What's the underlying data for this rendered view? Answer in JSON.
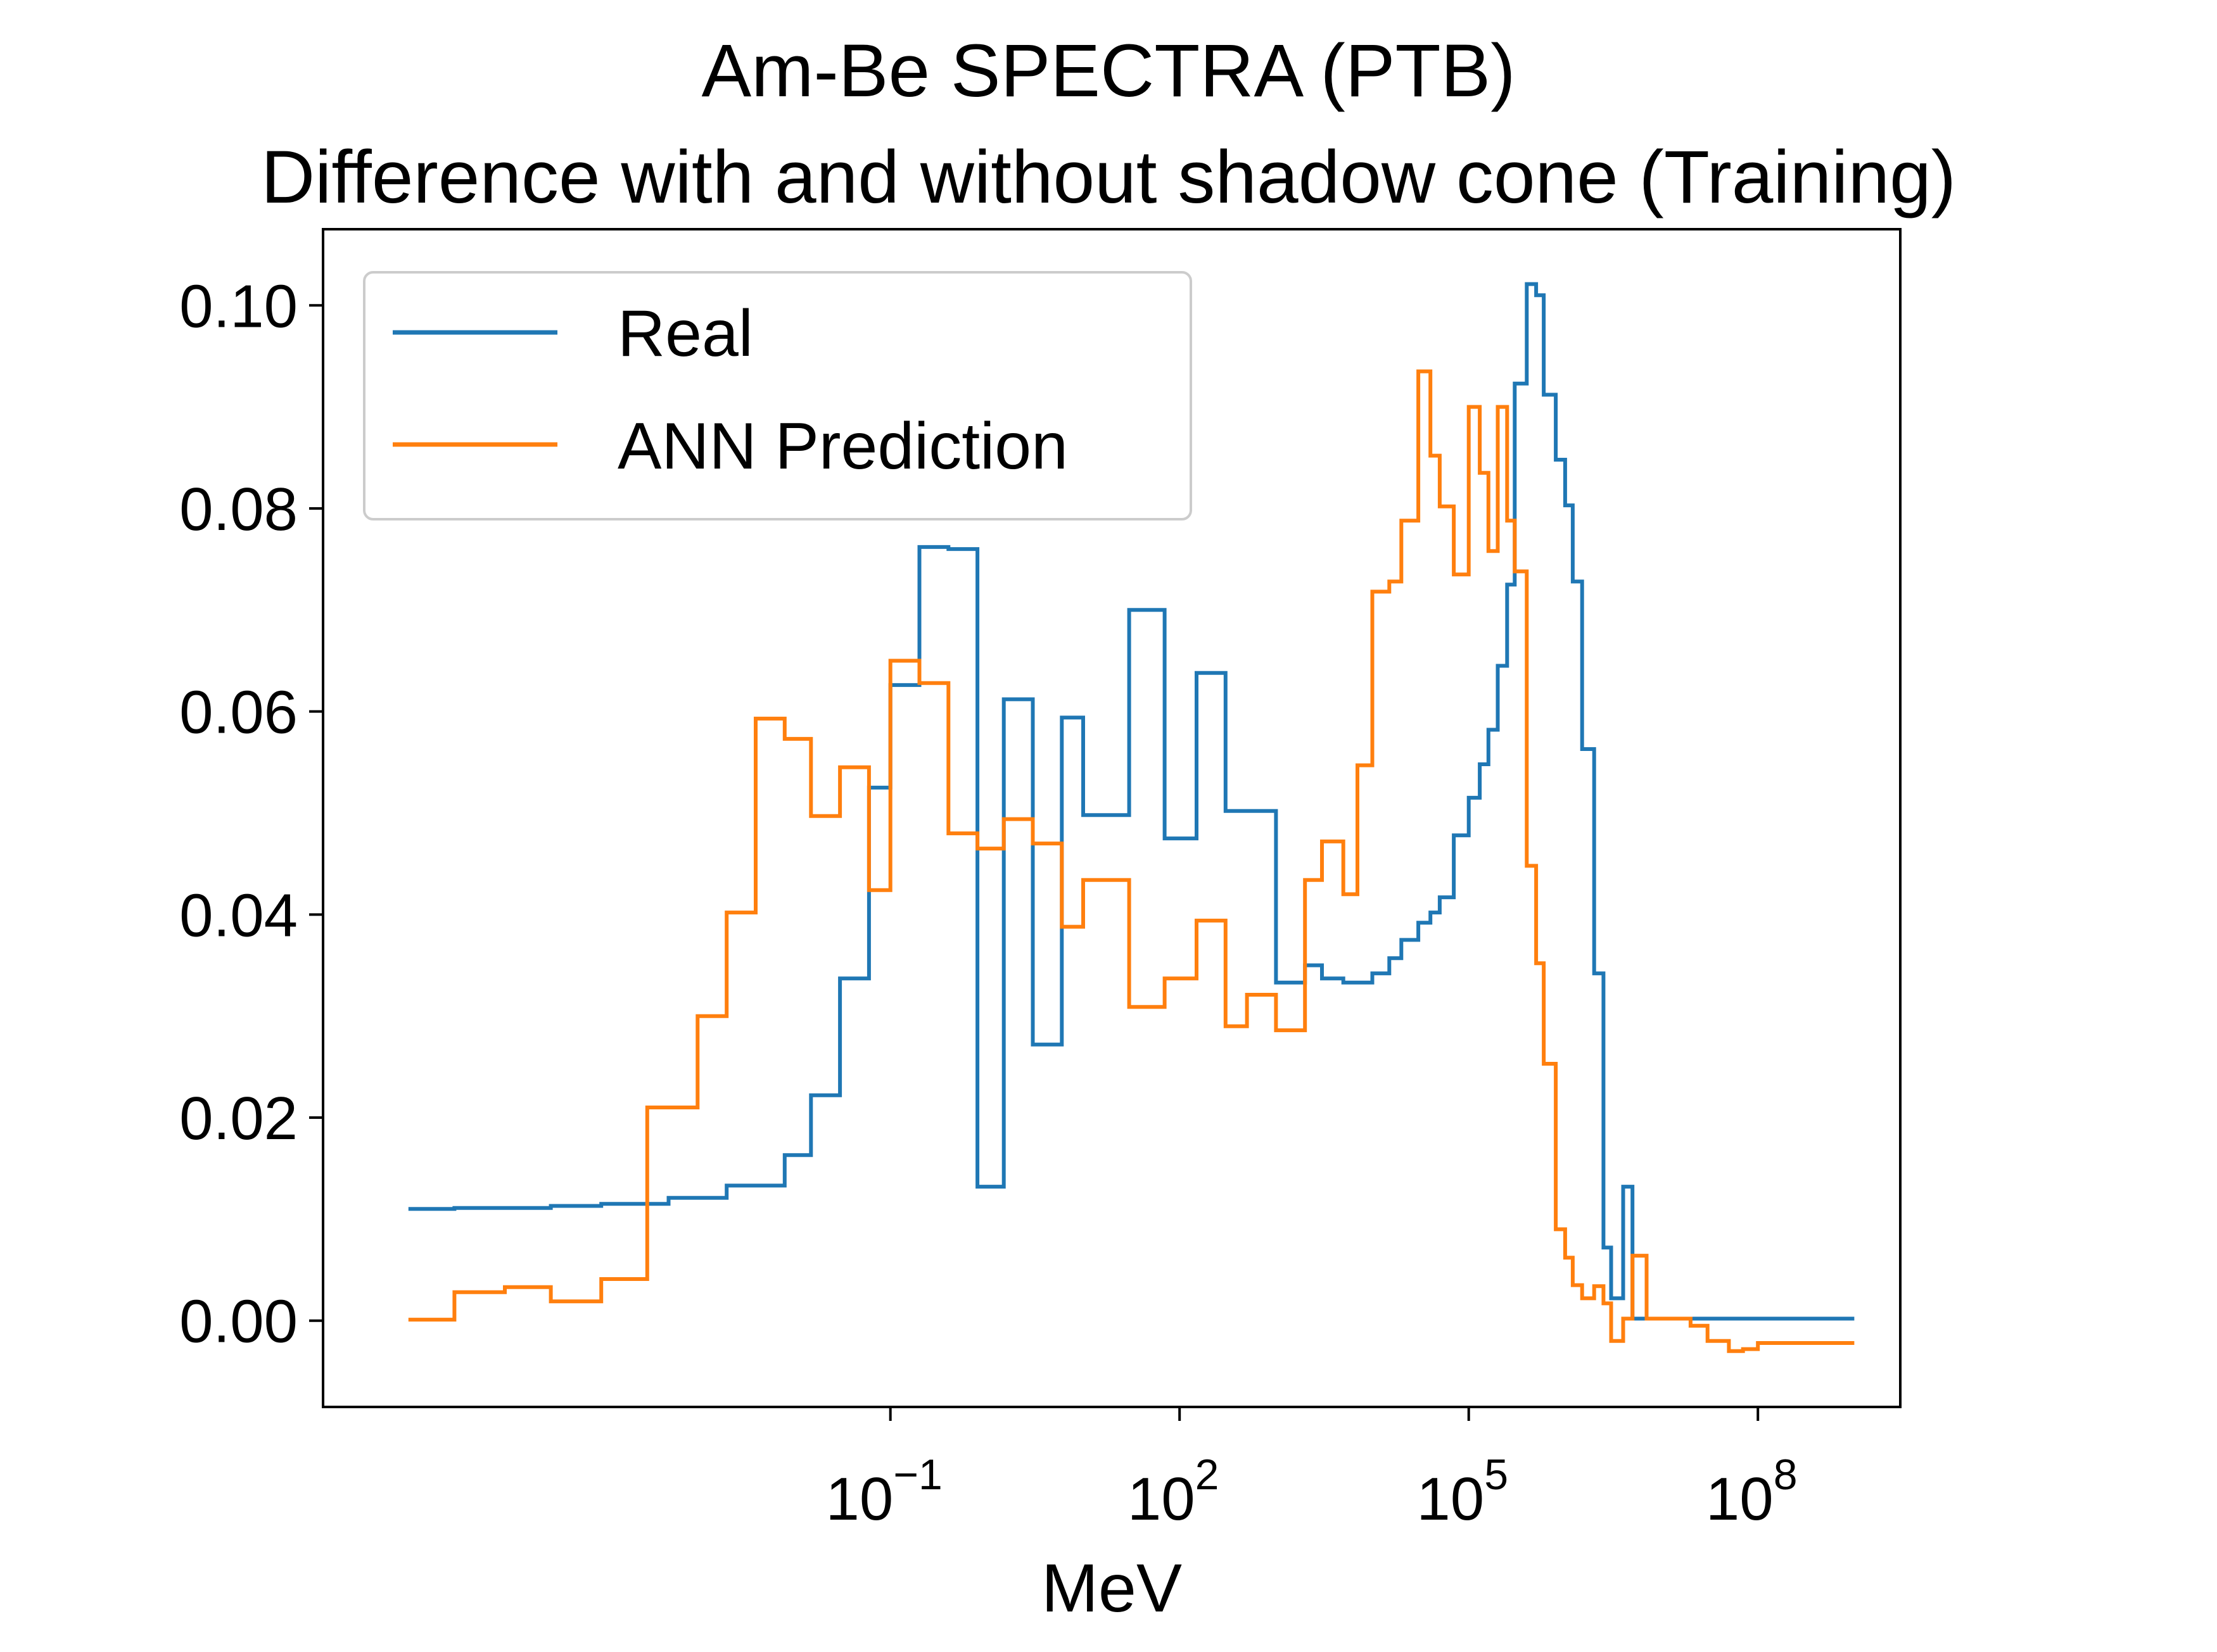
{
  "chart_data": {
    "type": "line",
    "step": "post",
    "title": "Am-Be SPECTRA (PTB)",
    "subtitle": "Difference with and without shadow cone (Training)",
    "xlabel": "MeV",
    "ylabel": "",
    "xscale": "log",
    "xlim": [
      1.3e-07,
      3000000000
    ],
    "ylim": [
      -0.0085,
      0.1075
    ],
    "grid": false,
    "legend_position": "upper-left",
    "x_ticks": [
      {
        "value": 0.1,
        "label": "10",
        "exp": "−1"
      },
      {
        "value": 100,
        "label": "10",
        "exp": "2"
      },
      {
        "value": 100000,
        "label": "10",
        "exp": "5"
      },
      {
        "value": 100000000,
        "label": "10",
        "exp": "8"
      }
    ],
    "y_ticks": [
      {
        "value": 0.0,
        "label": "0.00"
      },
      {
        "value": 0.02,
        "label": "0.02"
      },
      {
        "value": 0.04,
        "label": "0.04"
      },
      {
        "value": 0.06,
        "label": "0.06"
      },
      {
        "value": 0.08,
        "label": "0.08"
      },
      {
        "value": 0.1,
        "label": "0.10"
      }
    ],
    "series": [
      {
        "name": "Real",
        "color": "#1f77b4",
        "x": [
          1e-06,
          3e-06,
          1e-05,
          3e-05,
          0.0001,
          0.0002,
          0.0005,
          0.001,
          0.002,
          0.004,
          0.008,
          0.015,
          0.03,
          0.06,
          0.1,
          0.2,
          0.4,
          0.8,
          1.5,
          3,
          6,
          10,
          30,
          70,
          150,
          300,
          500,
          1000,
          2000,
          3000,
          5000,
          7000,
          10000,
          15000,
          20000,
          30000,
          40000,
          50000,
          70000,
          100000,
          130000,
          160000,
          200000,
          250000,
          300000,
          400000,
          500000,
          600000,
          800000,
          1000000,
          1200000,
          1500000,
          2000000,
          2500000,
          3000000,
          4000000,
          5000000,
          7000000,
          10000000,
          15000000,
          20000000,
          30000000,
          50000000,
          70000000,
          100000000,
          200000000,
          500000000,
          1000000000
        ],
        "y": [
          0.011,
          0.0111,
          0.0111,
          0.0113,
          0.0115,
          0.0115,
          0.0121,
          0.0121,
          0.0133,
          0.0133,
          0.0163,
          0.0222,
          0.0337,
          0.0525,
          0.0626,
          0.0762,
          0.076,
          0.0132,
          0.0612,
          0.0272,
          0.0594,
          0.0498,
          0.07,
          0.0475,
          0.0638,
          0.0502,
          0.0502,
          0.0333,
          0.035,
          0.0337,
          0.0333,
          0.0333,
          0.0342,
          0.0357,
          0.0375,
          0.0392,
          0.0402,
          0.0417,
          0.0478,
          0.0515,
          0.0548,
          0.0582,
          0.0645,
          0.0725,
          0.0923,
          0.1021,
          0.101,
          0.0912,
          0.0848,
          0.0803,
          0.0728,
          0.0563,
          0.0342,
          0.0072,
          0.0022,
          0.0132,
          0.0002,
          0.0002,
          0.0002,
          0.0002,
          0.0002,
          0.0002,
          0.0002,
          0.0002,
          0.0002,
          0.0002,
          0.0002,
          0.0002
        ]
      },
      {
        "name": "ANN Prediction",
        "color": "#ff7f0e",
        "x": [
          1e-06,
          3e-06,
          1e-05,
          3e-05,
          0.0001,
          0.0003,
          0.001,
          0.002,
          0.004,
          0.008,
          0.015,
          0.03,
          0.06,
          0.1,
          0.2,
          0.4,
          0.8,
          1.5,
          3,
          6,
          10,
          30,
          70,
          150,
          300,
          500,
          1000,
          2000,
          3000,
          5000,
          7000,
          10000,
          15000,
          20000,
          30000,
          40000,
          50000,
          70000,
          100000,
          130000,
          160000,
          200000,
          250000,
          300000,
          400000,
          500000,
          600000,
          800000,
          1000000,
          1200000,
          1500000,
          2000000,
          2500000,
          3000000,
          4000000,
          5000000,
          7000000,
          10000000,
          15000000,
          20000000,
          30000000,
          50000000,
          70000000,
          100000000,
          200000000,
          500000000,
          1000000000
        ],
        "y": [
          0.0001,
          0.0028,
          0.0033,
          0.0019,
          0.0041,
          0.021,
          0.03,
          0.0402,
          0.0593,
          0.0573,
          0.0497,
          0.0545,
          0.0424,
          0.065,
          0.0628,
          0.048,
          0.0465,
          0.0494,
          0.047,
          0.0388,
          0.0434,
          0.0309,
          0.0337,
          0.0394,
          0.029,
          0.0321,
          0.0286,
          0.0434,
          0.0472,
          0.042,
          0.0547,
          0.0718,
          0.0728,
          0.0788,
          0.0935,
          0.0852,
          0.0802,
          0.0735,
          0.09,
          0.0835,
          0.0758,
          0.09,
          0.0788,
          0.0738,
          0.0448,
          0.0352,
          0.0253,
          0.009,
          0.0062,
          0.0035,
          0.0022,
          0.0034,
          0.0017,
          -0.002,
          0.0002,
          0.0064,
          0.0002,
          0.0002,
          0.0002,
          -0.0005,
          -0.002,
          -0.003,
          -0.0028,
          -0.0022,
          -0.0022,
          -0.0022,
          -0.0022
        ]
      }
    ]
  }
}
